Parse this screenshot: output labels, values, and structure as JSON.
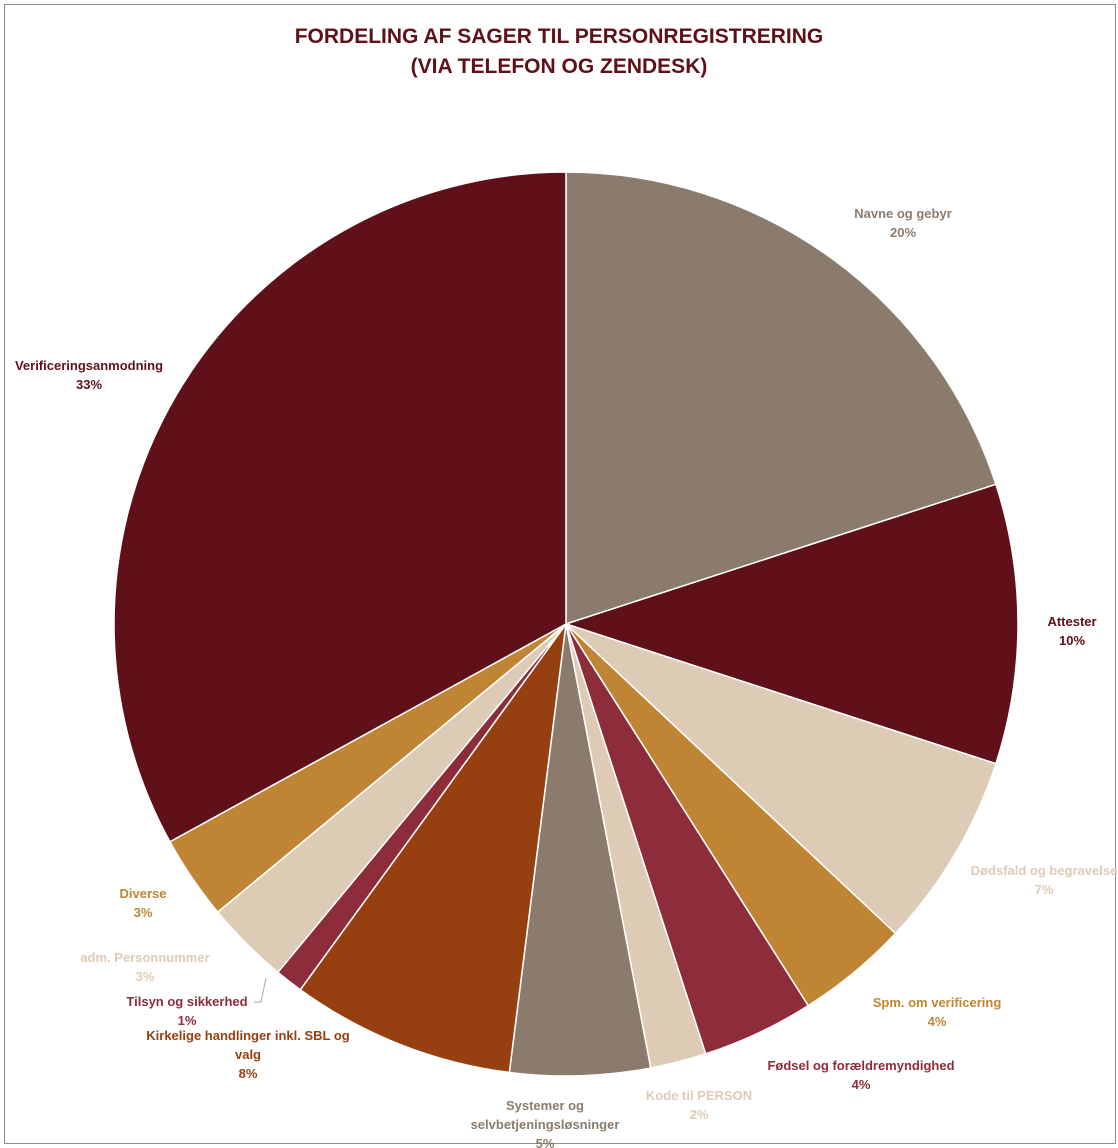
{
  "chart_data": {
    "type": "pie",
    "title": "FORDELING AF SAGER TIL PERSONREGISTRERING",
    "subtitle": "(VIA TELEFON OG ZENDESK)",
    "start_angle_deg": 0,
    "direction": "clockwise",
    "slices": [
      {
        "label": "Navne og gebyr",
        "value": 20,
        "percent_label": "20%",
        "color": "#8b7b6c",
        "label_color": "#8b7b6c"
      },
      {
        "label": "Attester",
        "value": 10,
        "percent_label": "10%",
        "color": "#5f1019",
        "label_color": "#5f1019"
      },
      {
        "label": "Dødsfald og begravelse",
        "value": 7,
        "percent_label": "7%",
        "color": "#ddcbb5",
        "label_color": "#ddcbb5"
      },
      {
        "label": "Spm. om verificering",
        "value": 4,
        "percent_label": "4%",
        "color": "#bf8434",
        "label_color": "#bf8434"
      },
      {
        "label": "Fødsel og forældremyndighed",
        "value": 4,
        "percent_label": "4%",
        "color": "#8d2c3a",
        "label_color": "#8d2c3a"
      },
      {
        "label": "Kode til PERSON",
        "value": 2,
        "percent_label": "2%",
        "color": "#ddcbb5",
        "label_color": "#ddcbb5"
      },
      {
        "label": "Systemer og selvbetjeningsløsninger",
        "label_lines": [
          "Systemer og",
          "selvbetjeningsløsninger"
        ],
        "value": 5,
        "percent_label": "5%",
        "color": "#8b7b6c",
        "label_color": "#8b7b6c"
      },
      {
        "label": "Kirkelige handlinger inkl. SBL og valg",
        "label_lines": [
          "Kirkelige handlinger inkl. SBL og",
          "valg"
        ],
        "value": 8,
        "percent_label": "8%",
        "color": "#964012",
        "label_color": "#964012"
      },
      {
        "label": "Tilsyn og sikkerhed",
        "value": 1,
        "percent_label": "1%",
        "color": "#8d2c3a",
        "label_color": "#8d2c3a"
      },
      {
        "label": "adm. Personnummer",
        "value": 3,
        "percent_label": "3%",
        "color": "#ddcbb5",
        "label_color": "#ddcbb5"
      },
      {
        "label": "Diverse",
        "value": 3,
        "percent_label": "3%",
        "color": "#bf8434",
        "label_color": "#bf8434"
      },
      {
        "label": "Verificeringsanmodning",
        "value": 33,
        "percent_label": "33%",
        "color": "#5f1019",
        "label_color": "#5f1019"
      }
    ]
  }
}
